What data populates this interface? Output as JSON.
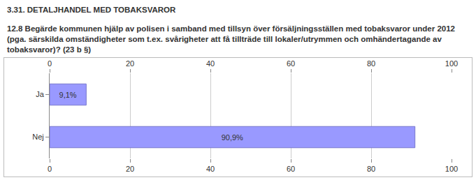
{
  "chart_data": {
    "type": "bar",
    "orientation": "horizontal",
    "title": "3.31. DETALJHANDEL MED TOBAKSVAROR",
    "subtitle": "12.8 Begärde kommunen hjälp av polisen i samband med tillsyn över försäljningsställen med tobaksvaror under 2012 (pga. särskilda omständigheter som t.ex. svårigheter att få tillträde till lokaler/utrymmen och omhändertagande av tobaksvaror)? (23 b §)",
    "categories": [
      "Ja",
      "Nej"
    ],
    "values": [
      9.1,
      90.9
    ],
    "value_labels": [
      "9,1%",
      "90,9%"
    ],
    "data_labels": true,
    "color": "#9999ff",
    "xlim": [
      0,
      100
    ],
    "xticks": [
      0,
      20,
      40,
      60,
      80,
      100
    ],
    "grid": true
  }
}
